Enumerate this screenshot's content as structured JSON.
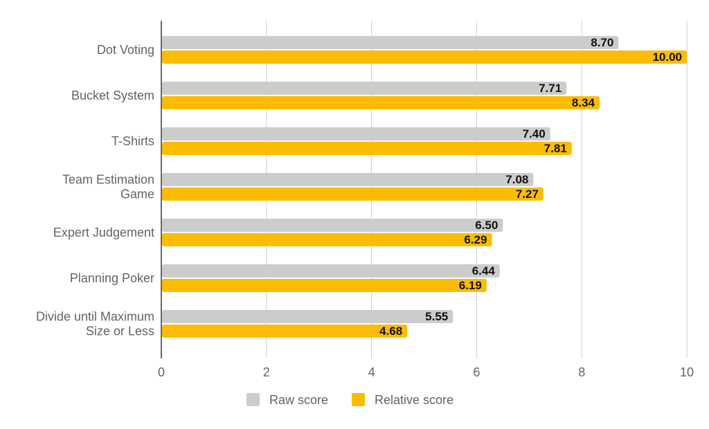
{
  "chart_data": {
    "type": "bar",
    "orientation": "horizontal",
    "categories": [
      [
        "Dot Voting"
      ],
      [
        "Bucket System"
      ],
      [
        "T-Shirts"
      ],
      [
        "Team Estimation",
        "Game"
      ],
      [
        "Expert Judgement"
      ],
      [
        "Planning Poker"
      ],
      [
        "Divide until Maximum",
        "Size or Less"
      ]
    ],
    "series": [
      {
        "name": "Raw score",
        "color": "#cccccc",
        "values": [
          8.7,
          7.71,
          7.4,
          7.08,
          6.5,
          6.44,
          5.55
        ],
        "labels": [
          "8.70",
          "7.71",
          "7.40",
          "7.08",
          "6.50",
          "6.44",
          "5.55"
        ]
      },
      {
        "name": "Relative score",
        "color": "#fbbc04",
        "values": [
          10.0,
          8.34,
          7.81,
          7.27,
          6.29,
          6.19,
          4.68
        ],
        "labels": [
          "10.00",
          "8.34",
          "7.81",
          "7.27",
          "6.29",
          "6.19",
          "4.68"
        ]
      }
    ],
    "xlim": [
      0,
      10
    ],
    "xticks": [
      0,
      2,
      4,
      6,
      8,
      10
    ],
    "xtick_labels": [
      "0",
      "2",
      "4",
      "6",
      "8",
      "10"
    ],
    "grid": true,
    "legend_position": "bottom",
    "colors": {
      "grid": "#cccccc",
      "axis": "#333333"
    }
  }
}
